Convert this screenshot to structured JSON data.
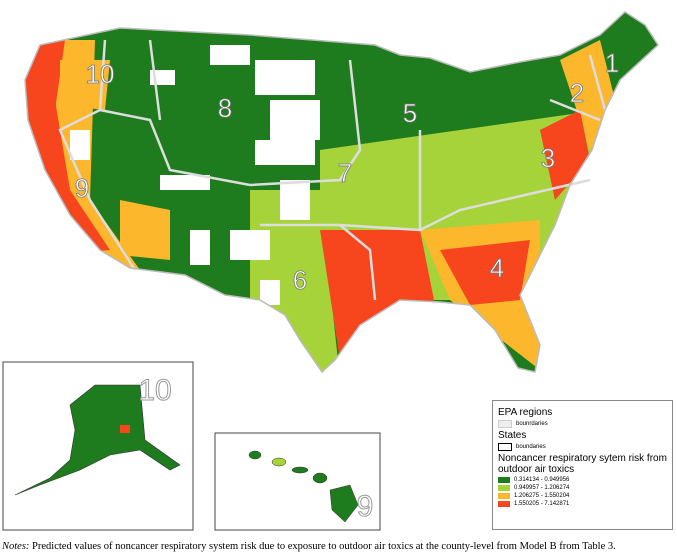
{
  "map": {
    "region_labels": [
      "1",
      "2",
      "3",
      "4",
      "5",
      "6",
      "7",
      "8",
      "9",
      "10"
    ],
    "alaska_label": "10",
    "hawaii_label": "9"
  },
  "legend": {
    "regions_title": "EPA regions",
    "regions_item": "bounrdaries",
    "states_title": "States",
    "states_item": "boundaries",
    "risk_title": "Noncancer respiratory sytem risk from outdoor air toxics",
    "classes": [
      {
        "label": "0.314134 - 0.949956",
        "color": "#1e7b1e"
      },
      {
        "label": "0.949957 - 1.206274",
        "color": "#a6d33a"
      },
      {
        "label": "1.206275 - 1.550204",
        "color": "#fdb72c"
      },
      {
        "label": "1.550205 - 7.142871",
        "color": "#f7451d"
      }
    ]
  },
  "notes": {
    "label": "Notes:",
    "text": "Predicted values of noncancer respiratory system risk due to exposure to outdoor air toxics at the county-level from Model B from Table 3."
  }
}
